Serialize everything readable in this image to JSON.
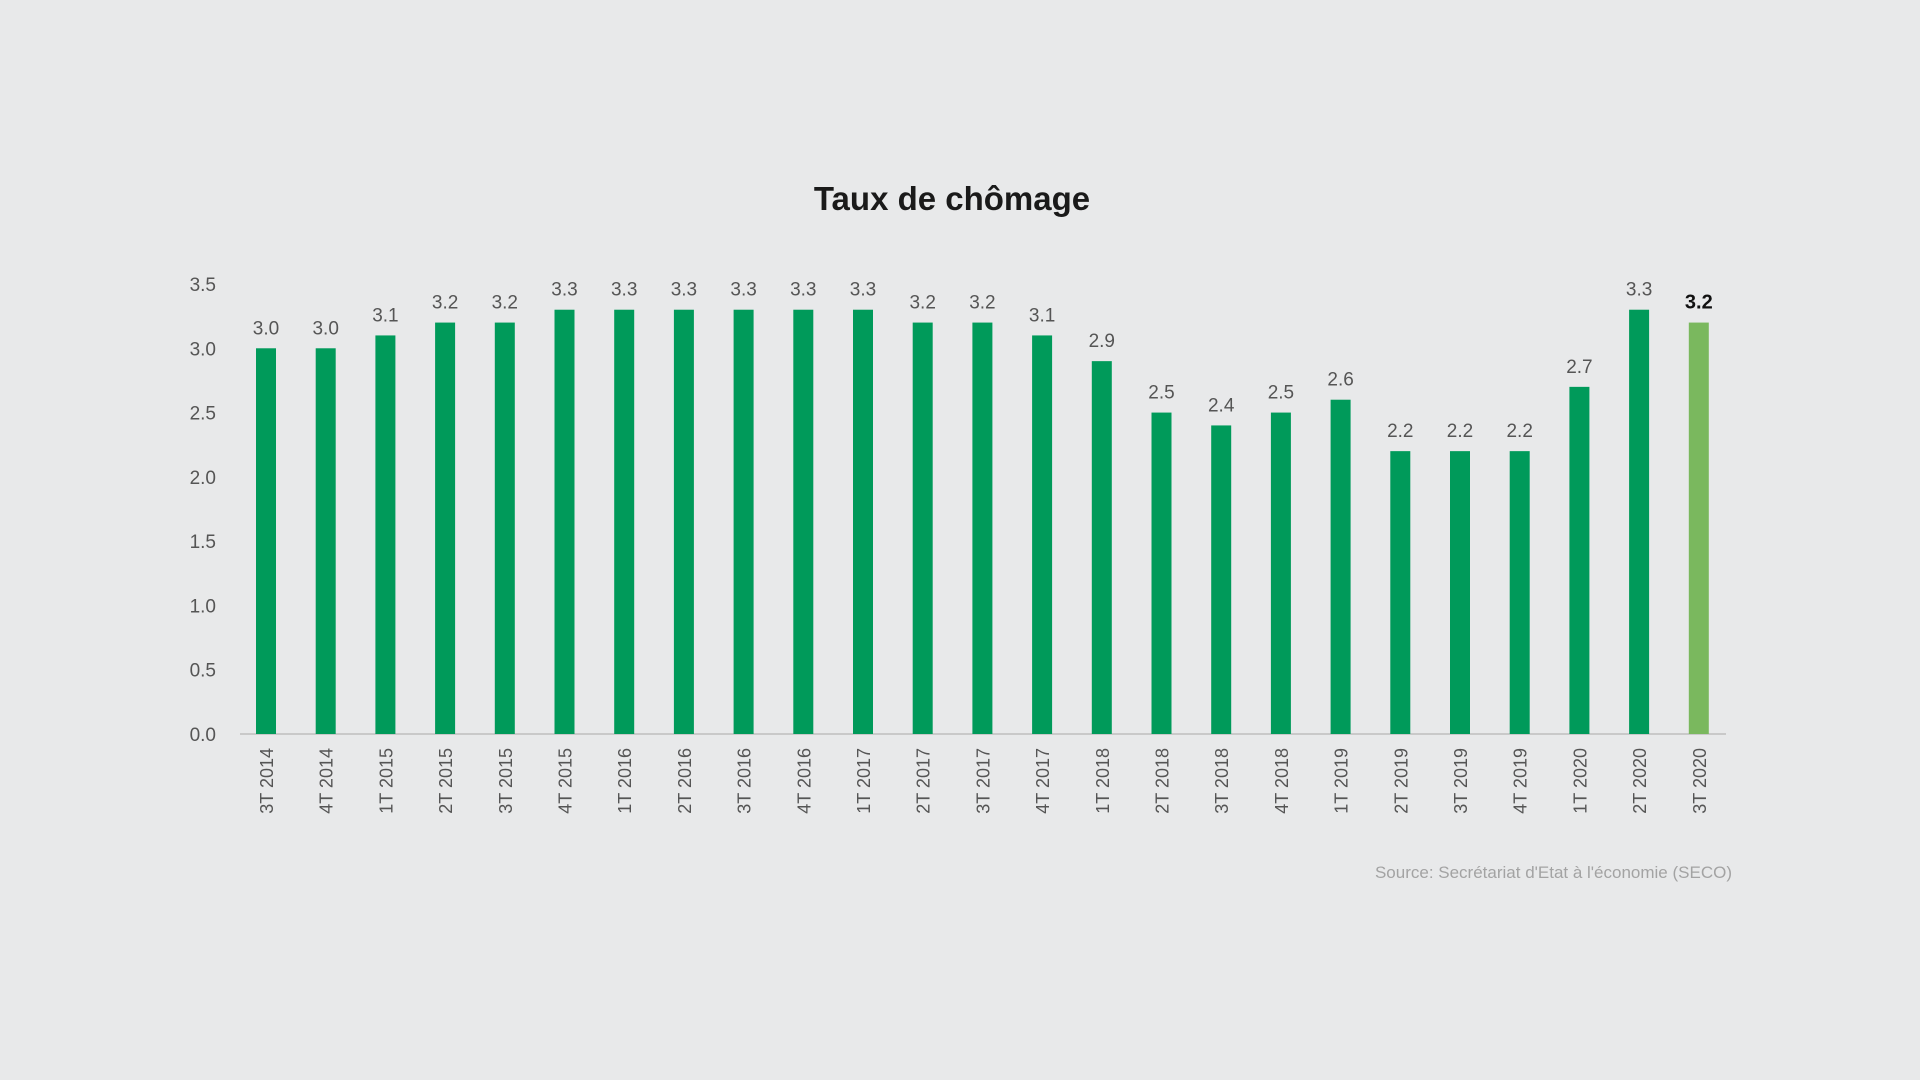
{
  "chart_data": {
    "type": "bar",
    "title": "Taux de chômage",
    "xlabel": "",
    "ylabel": "",
    "ylim": [
      0,
      3.5
    ],
    "yticks": [
      "0.0",
      "0.5",
      "1.0",
      "1.5",
      "2.0",
      "2.5",
      "3.0",
      "3.5"
    ],
    "grid": false,
    "categories": [
      "3T 2014",
      "4T 2014",
      "1T 2015",
      "2T 2015",
      "3T 2015",
      "4T 2015",
      "1T 2016",
      "2T 2016",
      "3T 2016",
      "4T 2016",
      "1T 2017",
      "2T 2017",
      "3T 2017",
      "4T 2017",
      "1T 2018",
      "2T 2018",
      "3T 2018",
      "4T 2018",
      "1T 2019",
      "2T 2019",
      "3T 2019",
      "4T 2019",
      "1T 2020",
      "2T 2020",
      "3T 2020"
    ],
    "values": [
      3.0,
      3.0,
      3.1,
      3.2,
      3.2,
      3.3,
      3.3,
      3.3,
      3.3,
      3.3,
      3.3,
      3.2,
      3.2,
      3.1,
      2.9,
      2.5,
      2.4,
      2.5,
      2.6,
      2.2,
      2.2,
      2.2,
      2.7,
      3.3,
      3.2
    ],
    "labels": [
      "3.0",
      "3.0",
      "3.1",
      "3.2",
      "3.2",
      "3.3",
      "3.3",
      "3.3",
      "3.3",
      "3.3",
      "3.3",
      "3.2",
      "3.2",
      "3.1",
      "2.9",
      "2.5",
      "2.4",
      "2.5",
      "2.6",
      "2.2",
      "2.2",
      "2.2",
      "2.7",
      "3.3",
      "3.2"
    ],
    "highlight_index": 24,
    "bar_color": "#009a5a",
    "highlight_color": "#7ab85e",
    "source": "Source: Secrétariat d'Etat à l'économie (SECO)"
  }
}
